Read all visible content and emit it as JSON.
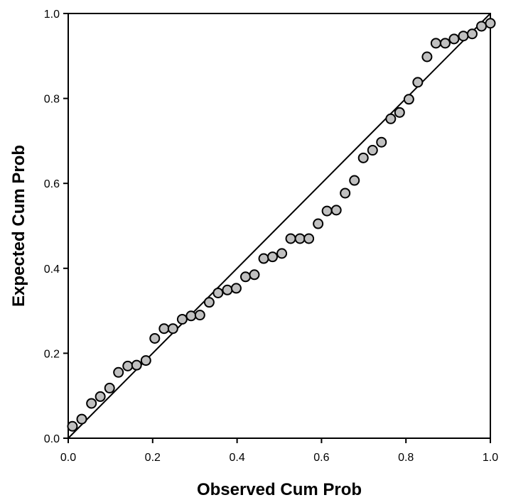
{
  "chart_data": {
    "type": "scatter",
    "xlabel": "Observed Cum Prob",
    "ylabel": "Expected Cum Prob",
    "xlim": [
      0.0,
      1.0
    ],
    "ylim": [
      0.0,
      1.0
    ],
    "x_ticks": [
      "0.0",
      "0.2",
      "0.4",
      "0.6",
      "0.8",
      "1.0"
    ],
    "y_ticks": [
      "0.0",
      "0.2",
      "0.4",
      "0.6",
      "0.8",
      "1.0"
    ],
    "grid": false,
    "reference_line": {
      "from": [
        0.0,
        0.0
      ],
      "to": [
        1.0,
        1.0
      ]
    },
    "colors": {
      "marker_fill": "#c0c0c0",
      "marker_stroke": "#000000",
      "line": "#000000"
    },
    "series": [
      {
        "x": [
          0.01,
          0.032,
          0.055,
          0.076,
          0.098,
          0.119,
          0.141,
          0.162,
          0.184,
          0.205,
          0.227,
          0.248,
          0.27,
          0.291,
          0.312,
          0.334,
          0.355,
          0.377,
          0.398,
          0.42,
          0.441,
          0.463,
          0.484,
          0.506,
          0.527,
          0.549,
          0.57,
          0.592,
          0.613,
          0.635,
          0.656,
          0.678,
          0.699,
          0.721,
          0.742,
          0.764,
          0.785,
          0.807,
          0.828,
          0.85,
          0.871,
          0.893,
          0.914,
          0.936,
          0.957,
          0.979,
          1.0
        ],
        "y": [
          0.028,
          0.045,
          0.082,
          0.098,
          0.118,
          0.155,
          0.17,
          0.172,
          0.183,
          0.235,
          0.258,
          0.258,
          0.28,
          0.288,
          0.29,
          0.32,
          0.342,
          0.349,
          0.353,
          0.38,
          0.385,
          0.423,
          0.427,
          0.435,
          0.47,
          0.47,
          0.47,
          0.505,
          0.535,
          0.537,
          0.577,
          0.607,
          0.66,
          0.678,
          0.697,
          0.752,
          0.767,
          0.798,
          0.838,
          0.898,
          0.93,
          0.93,
          0.94,
          0.947,
          0.952,
          0.97,
          0.977
        ]
      }
    ]
  }
}
